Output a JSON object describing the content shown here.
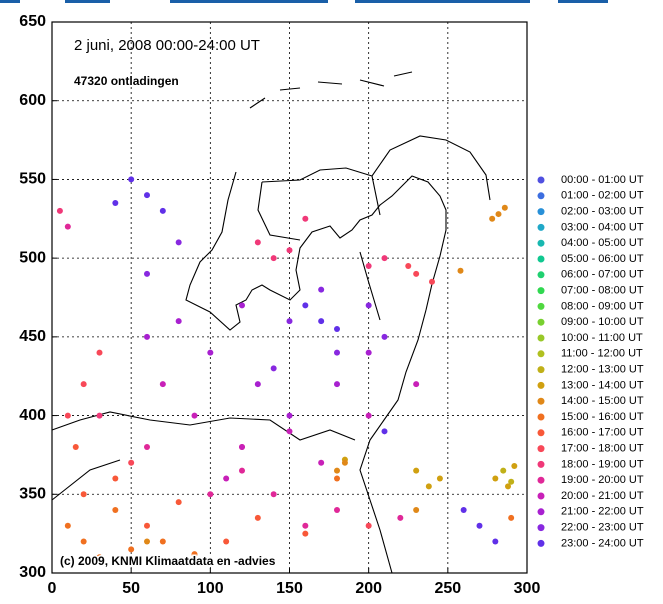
{
  "chart_data": {
    "type": "scatter",
    "title": "2 juni, 2008     00:00-24:00 UT",
    "subtitle": "47320 ontladingen",
    "annotation": "(c) 2009, KNMI Klimaatdata en -advies",
    "xlim": [
      0,
      300
    ],
    "ylim": [
      300,
      650
    ],
    "xticks": [
      0,
      50,
      100,
      150,
      200,
      250,
      300
    ],
    "yticks": [
      300,
      350,
      400,
      450,
      500,
      550,
      600,
      650
    ],
    "grid": true,
    "legend": "right",
    "series": [
      {
        "name": "00:00 - 01:00 UT",
        "color": "#5050e0",
        "x": [],
        "y": []
      },
      {
        "name": "01:00 - 02:00 UT",
        "color": "#3c6ee0",
        "x": [],
        "y": []
      },
      {
        "name": "02:00 - 03:00 UT",
        "color": "#2890d8",
        "x": [],
        "y": []
      },
      {
        "name": "03:00 - 04:00 UT",
        "color": "#20a8c8",
        "x": [],
        "y": []
      },
      {
        "name": "04:00 - 05:00 UT",
        "color": "#18b8b0",
        "x": [],
        "y": []
      },
      {
        "name": "05:00 - 06:00 UT",
        "color": "#10c890",
        "x": [],
        "y": []
      },
      {
        "name": "06:00 - 07:00 UT",
        "color": "#20d070",
        "x": [],
        "y": []
      },
      {
        "name": "07:00 - 08:00 UT",
        "color": "#30d850",
        "x": [],
        "y": []
      },
      {
        "name": "08:00 - 09:00 UT",
        "color": "#50d840",
        "x": [],
        "y": []
      },
      {
        "name": "09:00 - 10:00 UT",
        "color": "#78d030",
        "x": [],
        "y": []
      },
      {
        "name": "10:00 - 11:00 UT",
        "color": "#98c828",
        "x": [],
        "y": []
      },
      {
        "name": "11:00 - 12:00 UT",
        "color": "#b0c020",
        "x": [],
        "y": []
      },
      {
        "name": "12:00 - 13:00 UT",
        "color": "#c0b018",
        "x": [
          285,
          290
        ],
        "y": [
          365,
          358
        ]
      },
      {
        "name": "13:00 - 14:00 UT",
        "color": "#d0a010",
        "x": [
          280,
          288,
          292,
          230,
          238,
          245,
          185
        ],
        "y": [
          360,
          355,
          368,
          365,
          355,
          360,
          372
        ]
      },
      {
        "name": "14:00 - 15:00 UT",
        "color": "#e08818",
        "x": [
          278,
          282,
          286,
          258,
          185,
          230,
          180,
          60
        ],
        "y": [
          525,
          528,
          532,
          492,
          370,
          340,
          365,
          320
        ]
      },
      {
        "name": "15:00 - 16:00 UT",
        "color": "#f07020",
        "x": [
          20,
          30,
          50,
          70,
          90,
          180,
          290,
          40,
          10
        ],
        "y": [
          320,
          310,
          315,
          320,
          312,
          360,
          335,
          340,
          330
        ]
      },
      {
        "name": "16:00 - 17:00 UT",
        "color": "#f85838",
        "x": [
          20,
          60,
          110,
          130,
          40,
          80,
          15,
          160
        ],
        "y": [
          350,
          330,
          320,
          335,
          360,
          345,
          380,
          325
        ]
      },
      {
        "name": "17:00 - 18:00 UT",
        "color": "#f84858",
        "x": [
          20,
          10,
          230,
          240,
          225,
          30,
          50,
          200
        ],
        "y": [
          420,
          400,
          490,
          485,
          495,
          440,
          370,
          330
        ]
      },
      {
        "name": "18:00 - 19:00 UT",
        "color": "#f03878",
        "x": [
          140,
          130,
          210,
          200,
          150,
          160,
          30,
          5,
          120
        ],
        "y": [
          500,
          510,
          500,
          495,
          505,
          525,
          400,
          530,
          380
        ]
      },
      {
        "name": "19:00 - 20:00 UT",
        "color": "#e02898",
        "x": [
          140,
          60,
          100,
          180,
          120,
          10,
          160,
          220
        ],
        "y": [
          350,
          380,
          350,
          340,
          365,
          520,
          330,
          335
        ]
      },
      {
        "name": "20:00 - 21:00 UT",
        "color": "#c820b8",
        "x": [
          120,
          170,
          90,
          150,
          200,
          70,
          110,
          230
        ],
        "y": [
          380,
          370,
          400,
          390,
          400,
          420,
          360,
          420
        ]
      },
      {
        "name": "21:00 - 22:00 UT",
        "color": "#a820d0",
        "x": [
          100,
          150,
          130,
          80,
          180,
          200,
          60,
          120
        ],
        "y": [
          440,
          400,
          420,
          460,
          420,
          440,
          450,
          470
        ]
      },
      {
        "name": "22:00 - 23:00 UT",
        "color": "#8828e0",
        "x": [
          150,
          200,
          180,
          170,
          210,
          140,
          80,
          60
        ],
        "y": [
          460,
          470,
          440,
          480,
          450,
          430,
          510,
          490
        ]
      },
      {
        "name": "23:00 - 24:00 UT",
        "color": "#6030e8",
        "x": [
          60,
          50,
          70,
          40,
          170,
          160,
          180,
          270,
          260,
          280,
          210
        ],
        "y": [
          540,
          550,
          530,
          535,
          460,
          470,
          455,
          330,
          340,
          320,
          390
        ]
      }
    ]
  }
}
